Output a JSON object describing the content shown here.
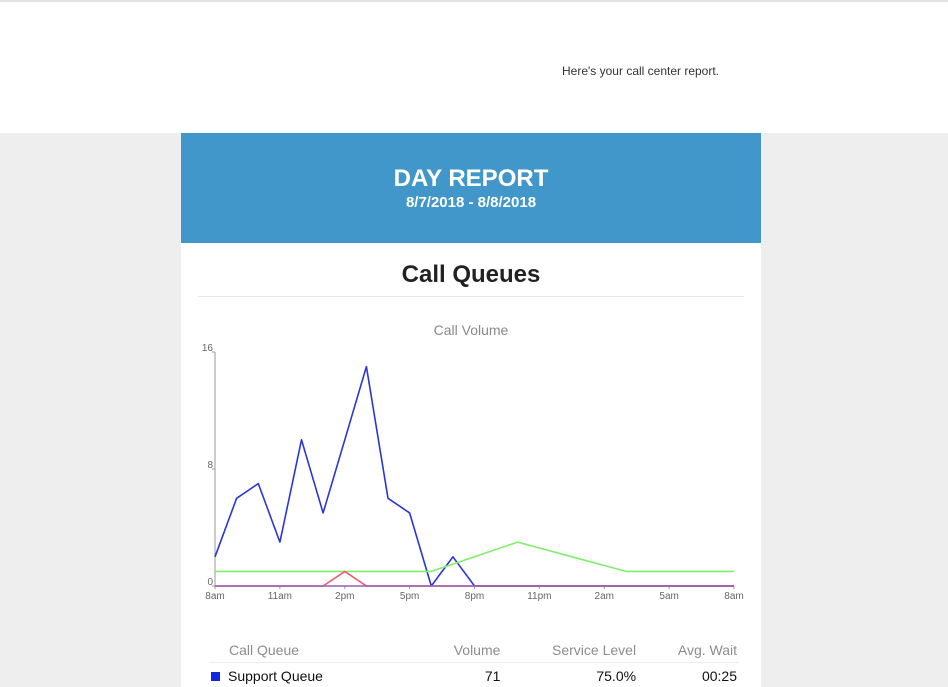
{
  "intro_text": "Here's your call center report.",
  "report": {
    "title": "DAY REPORT",
    "date_range": "8/7/2018 - 8/8/2018"
  },
  "section_title": "Call Queues",
  "chart_data": {
    "type": "line",
    "title": "Call Volume",
    "x_tick_labels": [
      "8am",
      "11am",
      "2pm",
      "5pm",
      "8pm",
      "11pm",
      "2am",
      "5am",
      "8am"
    ],
    "y_tick_labels": [
      "0",
      "8",
      "16"
    ],
    "ylim": [
      0,
      16
    ],
    "grid": false,
    "legend": "none",
    "x_count": 25,
    "series": [
      {
        "color": "#2b35d8",
        "values": [
          2,
          6,
          7,
          3,
          10,
          5,
          10,
          15,
          6,
          5,
          0,
          2,
          0,
          0,
          0,
          0,
          0,
          0,
          0,
          0,
          0,
          0,
          0,
          0,
          0
        ]
      },
      {
        "color": "#7ef06a",
        "values": [
          1,
          1,
          1,
          1,
          1,
          1,
          1,
          1,
          1,
          1,
          1,
          1.5,
          2,
          2.5,
          3,
          2.6,
          2.2,
          1.8,
          1.4,
          1,
          1,
          1,
          1,
          1,
          1
        ]
      },
      {
        "color": "#f25a66",
        "values": [
          0,
          0,
          0,
          0,
          0,
          0,
          1,
          0,
          0,
          0,
          0,
          0,
          0,
          0,
          0,
          0,
          0,
          0,
          0,
          0,
          0,
          0,
          0,
          0,
          0
        ]
      },
      {
        "color": "#9b59b6",
        "values": [
          0,
          0,
          0,
          0,
          0,
          0,
          0,
          0,
          0,
          0,
          0,
          0,
          0,
          0,
          0,
          0,
          0,
          0,
          0,
          0,
          0,
          0,
          0,
          0,
          0
        ]
      }
    ]
  },
  "table": {
    "headers": [
      "Call Queue",
      "Volume",
      "Service Level",
      "Avg. Wait"
    ],
    "rows": [
      {
        "queue": "Support Queue",
        "color": "#1428e0",
        "volume": "71",
        "service_level": "75.0%",
        "avg_wait": "00:25"
      }
    ]
  }
}
